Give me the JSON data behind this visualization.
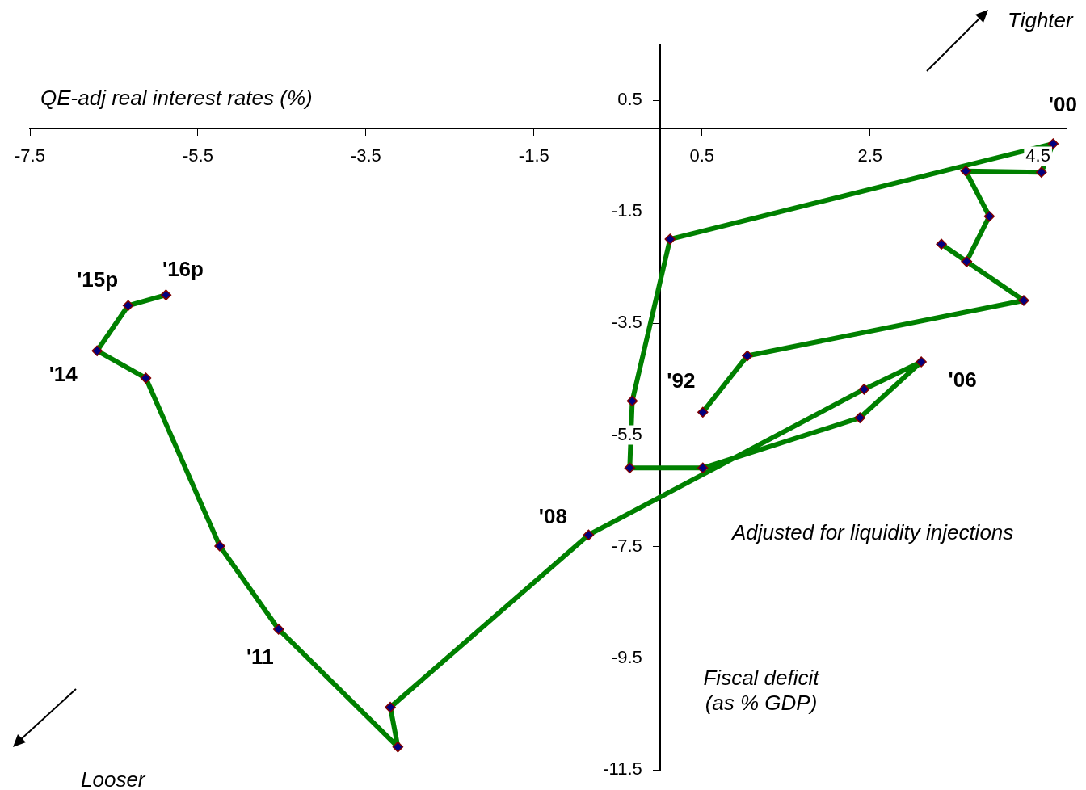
{
  "chart_data": {
    "type": "line",
    "xlabel": "QE-adj real interest rates (%)",
    "ylabel": "Fiscal deficit (as % GDP)",
    "x": [
      0.51,
      1.04,
      4.33,
      3.65,
      3.35,
      3.65,
      3.92,
      3.64,
      4.54,
      4.68,
      0.12,
      -0.33,
      -0.36,
      0.51,
      2.38,
      3.11,
      2.43,
      -0.85,
      -3.21,
      -3.12,
      -4.54,
      -5.24,
      -6.12,
      -6.7,
      -6.33,
      -5.88
    ],
    "series": [
      {
        "color": "#008000",
        "values": [
          -5.09,
          -4.08,
          -3.09,
          -2.39,
          -2.08,
          -2.39,
          -1.58,
          -0.77,
          -0.79,
          -0.28,
          -1.99,
          -4.89,
          -6.09,
          -6.09,
          -5.19,
          -4.19,
          -4.68,
          -7.29,
          -10.38,
          -11.09,
          -8.98,
          -7.49,
          -4.48,
          -3.99,
          -3.18,
          -2.99
        ]
      }
    ],
    "xlim": [
      -7.5,
      4.84
    ],
    "xticks": [
      -7.5,
      -5.5,
      -3.5,
      -1.5,
      0.5,
      2.5,
      4.5
    ],
    "ylim": [
      -11.5,
      1.5
    ],
    "yticks": [
      0.5,
      -1.5,
      -3.5,
      -5.5,
      -7.5,
      -9.5,
      -11.5
    ],
    "grid": false,
    "legend": false,
    "marker": "diamond",
    "line_style": "solid",
    "annotations": [
      {
        "text": "'00",
        "x": 4.68,
        "y": -0.28
      },
      {
        "text": "'92",
        "x": 0.51,
        "y": -5.09
      },
      {
        "text": "'06",
        "x": 3.11,
        "y": -4.19
      },
      {
        "text": "'08",
        "x": -0.85,
        "y": -7.29
      },
      {
        "text": "'11",
        "x": -4.54,
        "y": -8.98
      },
      {
        "text": "'14",
        "x": -6.7,
        "y": -3.99
      },
      {
        "text": "'15p",
        "x": -6.33,
        "y": -3.18
      },
      {
        "text": "'16p",
        "x": -5.88,
        "y": -2.99
      },
      "Adjusted for liquidity injections",
      "Tighter",
      "Looser"
    ]
  }
}
